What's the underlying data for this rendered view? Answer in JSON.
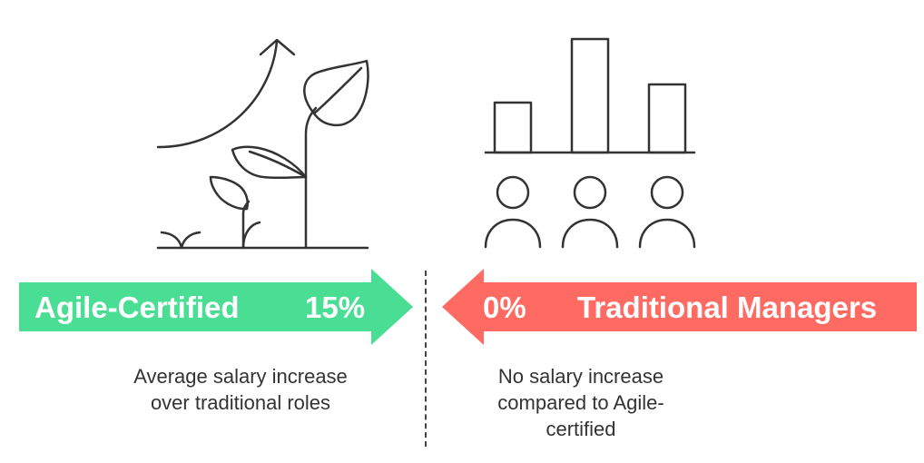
{
  "left": {
    "title": "Agile-Certified",
    "value": "15%",
    "caption_line1": "Average salary increase",
    "caption_line2": "over traditional roles",
    "color": "#4ADE94",
    "icon": "growing-plant-with-upward-arrow"
  },
  "right": {
    "title": "Traditional Managers",
    "value": "0%",
    "caption_line1": "No salary increase",
    "caption_line2": "compared to Agile-",
    "caption_line3": "certified",
    "color": "#FF6B63",
    "icon": "bar-chart-with-three-people"
  }
}
